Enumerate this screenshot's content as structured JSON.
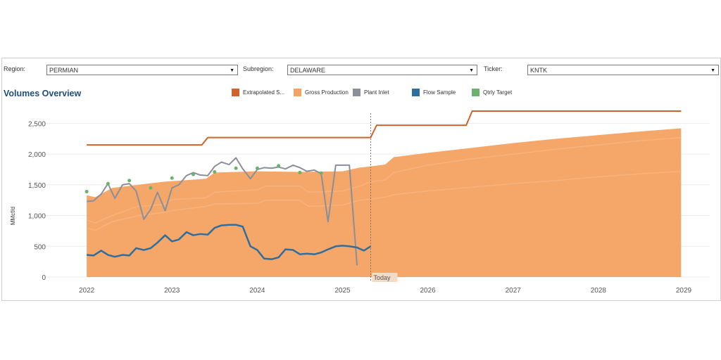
{
  "filters": {
    "region": {
      "label": "Region:",
      "value": "PERMIAN"
    },
    "subregion": {
      "label": "Subregion:",
      "value": "DELAWARE"
    },
    "ticker": {
      "label": "Ticker:",
      "value": "KNTK"
    }
  },
  "title": "Volumes Overview",
  "legend": [
    {
      "name": "Extrapolated S...",
      "color": "#d2622b",
      "icon": "legend-swatch"
    },
    {
      "name": "Gross Production",
      "color": "#f4a261",
      "icon": "legend-swatch"
    },
    {
      "name": "Plant Inlet",
      "color": "#8a8f99",
      "icon": "legend-swatch"
    },
    {
      "name": "Flow Sample",
      "color": "#2e6e9e",
      "icon": "legend-swatch"
    },
    {
      "name": "Qtrly Target",
      "color": "#6bb36b",
      "icon": "legend-swatch"
    }
  ],
  "chart_data": {
    "type": "area",
    "ylabel": "MMcf/d",
    "ylim": [
      0,
      2700
    ],
    "yticks": [
      0,
      500,
      1000,
      1500,
      2000,
      2500
    ],
    "ytick_labels": [
      "0",
      "500",
      "1,000",
      "1,500",
      "2,000",
      "2,500"
    ],
    "xlim": [
      2021.9,
      2029.0
    ],
    "xticks": [
      2022,
      2023,
      2024,
      2025,
      2026,
      2027,
      2028,
      2029
    ],
    "today": {
      "x": 2025.33,
      "label": "Today"
    },
    "grid": true,
    "series": [
      {
        "name": "Gross Production",
        "kind": "area",
        "color": "#f4a261",
        "x": [
          2022.0,
          2022.1,
          2022.3,
          2022.6,
          2022.9,
          2023.0,
          2023.4,
          2023.5,
          2024.0,
          2024.5,
          2025.0,
          2025.2,
          2025.33,
          2025.5,
          2025.6,
          2026.0,
          2026.5,
          2027.0,
          2027.5,
          2028.0,
          2028.5,
          2028.97
        ],
        "values": [
          1330,
          1300,
          1450,
          1500,
          1550,
          1560,
          1600,
          1700,
          1720,
          1710,
          1720,
          1780,
          1800,
          1830,
          1950,
          2020,
          2100,
          2180,
          2250,
          2310,
          2370,
          2420
        ]
      },
      {
        "name": "Gross Production band upper",
        "kind": "line",
        "color": "#f7b27d",
        "x": [
          2022.0,
          2022.1,
          2022.3,
          2022.6,
          2022.9,
          2023.0,
          2023.4,
          2023.5,
          2024.0,
          2024.1,
          2024.5,
          2024.6,
          2025.0,
          2025.2,
          2025.33,
          2025.5,
          2025.6,
          2026.0,
          2026.5,
          2027.0,
          2027.5,
          2028.0,
          2028.5,
          2028.97
        ],
        "values": [
          930,
          880,
          1000,
          1150,
          1180,
          1260,
          1290,
          1380,
          1420,
          1480,
          1480,
          1380,
          1400,
          1480,
          1550,
          1580,
          1700,
          1820,
          1920,
          2000,
          2080,
          2150,
          2220,
          2270
        ]
      },
      {
        "name": "Gross Production band lower",
        "kind": "line",
        "color": "#f7b27d",
        "x": [
          2022.0,
          2022.1,
          2022.3,
          2022.6,
          2022.9,
          2023.0,
          2023.4,
          2023.5,
          2024.0,
          2024.1,
          2024.5,
          2024.6,
          2025.0,
          2025.2,
          2025.33,
          2025.5,
          2025.6,
          2026.0,
          2026.5,
          2027.0,
          2027.5,
          2028.0,
          2028.5,
          2028.97
        ],
        "values": [
          800,
          760,
          900,
          1000,
          1050,
          1080,
          1150,
          1190,
          1200,
          1250,
          1250,
          1150,
          1170,
          1250,
          1270,
          1300,
          1340,
          1400,
          1460,
          1520,
          1570,
          1630,
          1680,
          1720
        ]
      },
      {
        "name": "Extrapolated S...",
        "kind": "line",
        "color": "#d2622b",
        "x": [
          2022.0,
          2023.35,
          2023.42,
          2025.33,
          2025.4,
          2026.45,
          2026.52,
          2028.97
        ],
        "values": [
          2150,
          2150,
          2270,
          2270,
          2470,
          2470,
          2700,
          2700
        ]
      },
      {
        "name": "Plant Inlet",
        "kind": "line",
        "color": "#8a8f99",
        "x": [
          2022.0,
          2022.08,
          2022.17,
          2022.25,
          2022.33,
          2022.42,
          2022.5,
          2022.58,
          2022.67,
          2022.75,
          2022.83,
          2022.92,
          2023.0,
          2023.08,
          2023.17,
          2023.25,
          2023.33,
          2023.42,
          2023.5,
          2023.58,
          2023.67,
          2023.75,
          2023.83,
          2023.92,
          2024.0,
          2024.08,
          2024.17,
          2024.25,
          2024.33,
          2024.42,
          2024.5,
          2024.58,
          2024.67,
          2024.75,
          2024.83,
          2024.92,
          2025.0,
          2025.08,
          2025.17
        ],
        "values": [
          1230,
          1240,
          1350,
          1520,
          1280,
          1500,
          1520,
          1400,
          940,
          1100,
          1380,
          1080,
          1450,
          1500,
          1650,
          1700,
          1660,
          1650,
          1800,
          1870,
          1830,
          1940,
          1760,
          1600,
          1750,
          1780,
          1770,
          1790,
          1760,
          1820,
          1780,
          1720,
          1740,
          1680,
          900,
          1820,
          1820,
          1820,
          190
        ]
      },
      {
        "name": "Flow Sample",
        "kind": "line",
        "color": "#2e6e9e",
        "x": [
          2022.0,
          2022.08,
          2022.17,
          2022.25,
          2022.33,
          2022.42,
          2022.5,
          2022.58,
          2022.67,
          2022.75,
          2022.83,
          2022.92,
          2023.0,
          2023.08,
          2023.17,
          2023.25,
          2023.33,
          2023.42,
          2023.5,
          2023.58,
          2023.67,
          2023.75,
          2023.83,
          2023.92,
          2024.0,
          2024.08,
          2024.17,
          2024.25,
          2024.33,
          2024.42,
          2024.5,
          2024.58,
          2024.67,
          2024.75,
          2024.83,
          2024.92,
          2025.0,
          2025.08,
          2025.17,
          2025.25,
          2025.33
        ],
        "values": [
          360,
          350,
          430,
          360,
          330,
          360,
          350,
          470,
          440,
          470,
          560,
          680,
          580,
          610,
          730,
          680,
          700,
          690,
          800,
          840,
          850,
          850,
          820,
          500,
          440,
          300,
          290,
          320,
          450,
          440,
          370,
          380,
          370,
          400,
          450,
          500,
          510,
          500,
          480,
          430,
          500
        ]
      },
      {
        "name": "Qtrly Target",
        "kind": "scatter",
        "color": "#6bb36b",
        "x": [
          2022.0,
          2022.25,
          2022.5,
          2022.75,
          2023.0,
          2023.25,
          2023.5,
          2023.75,
          2024.0,
          2024.25,
          2024.5,
          2024.75
        ],
        "values": [
          1390,
          1520,
          1570,
          1450,
          1610,
          1670,
          1710,
          1770,
          1770,
          1810,
          1700,
          1690
        ]
      }
    ]
  }
}
